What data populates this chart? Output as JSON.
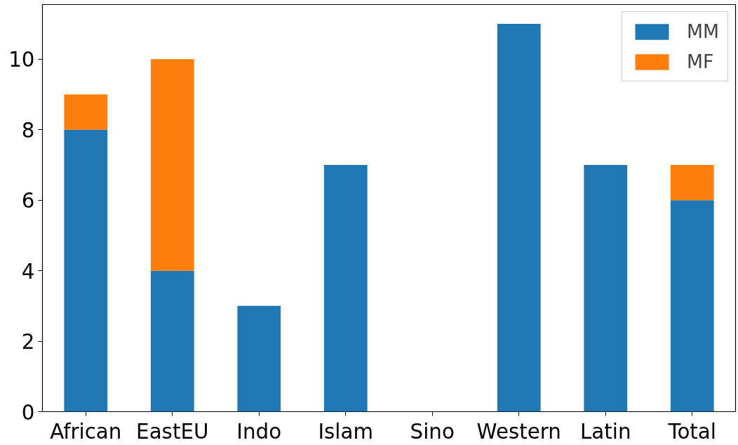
{
  "chart_data": {
    "type": "bar",
    "stacked": true,
    "categories": [
      "African",
      "EastEU",
      "Indo",
      "Islam",
      "Sino",
      "Western",
      "Latin",
      "Total"
    ],
    "series": [
      {
        "name": "MM",
        "color": "#1f77b4",
        "values": [
          8,
          4,
          3,
          7,
          0,
          11,
          7,
          6
        ]
      },
      {
        "name": "MF",
        "color": "#ff7f0e",
        "values": [
          1,
          6,
          0,
          0,
          0,
          0,
          0,
          1
        ]
      }
    ],
    "ylim": [
      0,
      11.55
    ],
    "yticks": [
      0,
      2,
      4,
      6,
      8,
      10
    ],
    "grid": false,
    "legend": "top right"
  }
}
